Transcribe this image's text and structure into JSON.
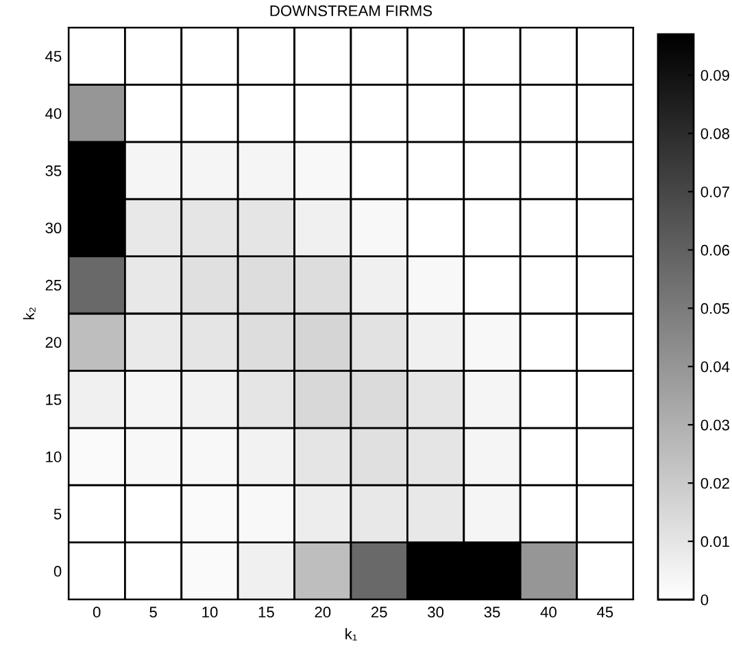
{
  "chart_data": {
    "type": "heatmap",
    "title": "DOWNSTREAM FIRMS",
    "xlabel": "k₁",
    "ylabel": "k₂",
    "categories": [
      "0",
      "5",
      "10",
      "15",
      "20",
      "25",
      "30",
      "35",
      "40",
      "45"
    ],
    "y_categories": [
      "45",
      "40",
      "35",
      "30",
      "25",
      "20",
      "15",
      "10",
      "5",
      "0"
    ],
    "cells": [
      [
        0,
        0,
        0,
        0,
        0,
        0,
        0,
        0,
        0,
        0
      ],
      [
        0.04,
        0,
        0,
        0,
        0,
        0,
        0,
        0,
        0,
        0
      ],
      [
        0.097,
        0.004,
        0.004,
        0.004,
        0.003,
        0,
        0,
        0,
        0,
        0
      ],
      [
        0.097,
        0.009,
        0.01,
        0.01,
        0.006,
        0.003,
        0,
        0,
        0,
        0
      ],
      [
        0.057,
        0.009,
        0.012,
        0.013,
        0.013,
        0.006,
        0.003,
        0,
        0,
        0
      ],
      [
        0.025,
        0.008,
        0.01,
        0.013,
        0.016,
        0.011,
        0.006,
        0.003,
        0,
        0
      ],
      [
        0.006,
        0.004,
        0.005,
        0.01,
        0.015,
        0.014,
        0.01,
        0.004,
        0,
        0
      ],
      [
        0.002,
        0.003,
        0.003,
        0.005,
        0.01,
        0.012,
        0.01,
        0.004,
        0,
        0
      ],
      [
        0,
        0,
        0.002,
        0.003,
        0.007,
        0.009,
        0.009,
        0.004,
        0,
        0
      ],
      [
        0,
        0,
        0.002,
        0.006,
        0.025,
        0.057,
        0.097,
        0.097,
        0.04,
        0
      ]
    ],
    "clim": [
      0,
      0.097
    ],
    "cticks": [
      0,
      0.01,
      0.02,
      0.03,
      0.04,
      0.05,
      0.06,
      0.07,
      0.08,
      0.09
    ]
  }
}
